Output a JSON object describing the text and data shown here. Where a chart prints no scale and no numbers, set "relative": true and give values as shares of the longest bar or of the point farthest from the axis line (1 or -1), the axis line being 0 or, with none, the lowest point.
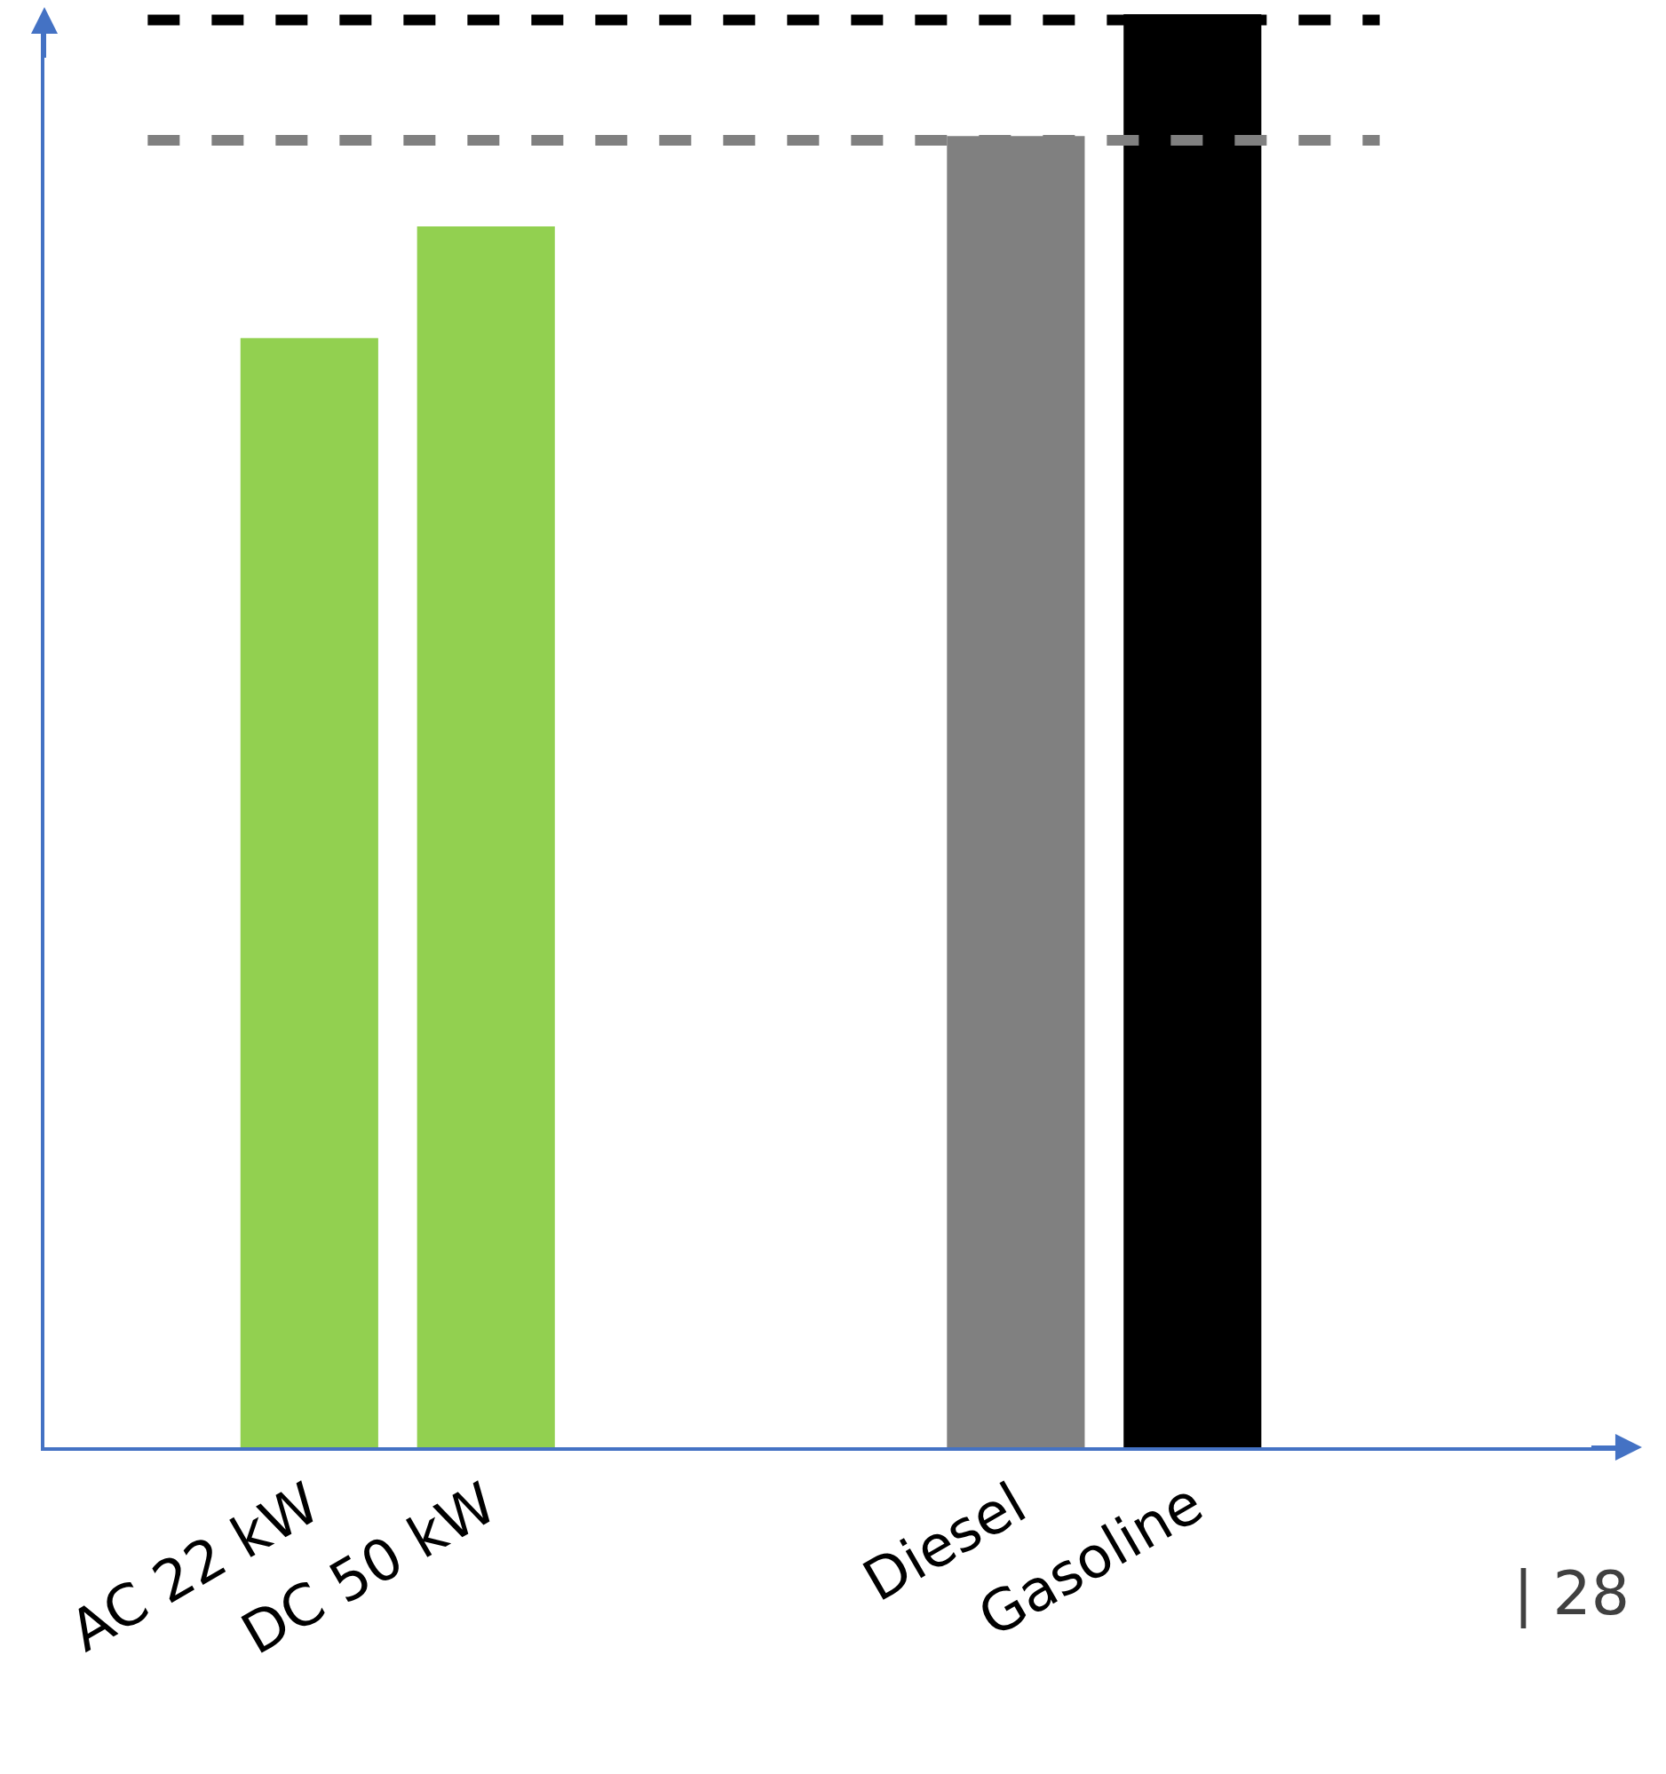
{
  "chart_data": {
    "type": "bar",
    "relative": true,
    "categories": [
      null,
      "AC 22 kW",
      "DC 50 kW",
      null,
      null,
      "Diesel",
      "Gasoline",
      null,
      null
    ],
    "values": [
      null,
      0.774,
      0.852,
      null,
      null,
      0.915,
      1,
      null,
      null
    ],
    "colors": [
      "#92d050",
      "#92d050",
      "#92d050",
      "#808080",
      "#808080",
      "#808080",
      "#000000",
      "#000000",
      "#000000"
    ],
    "ref_lines": [
      {
        "axis": "y",
        "value": 0.996,
        "color": "#000000",
        "line_style": "dashed"
      },
      {
        "axis": "y",
        "value": 0.912,
        "color": "#808080",
        "line_style": "dashed"
      }
    ],
    "annotations": [
      "| 28"
    ],
    "grid": false,
    "legend": false
  }
}
